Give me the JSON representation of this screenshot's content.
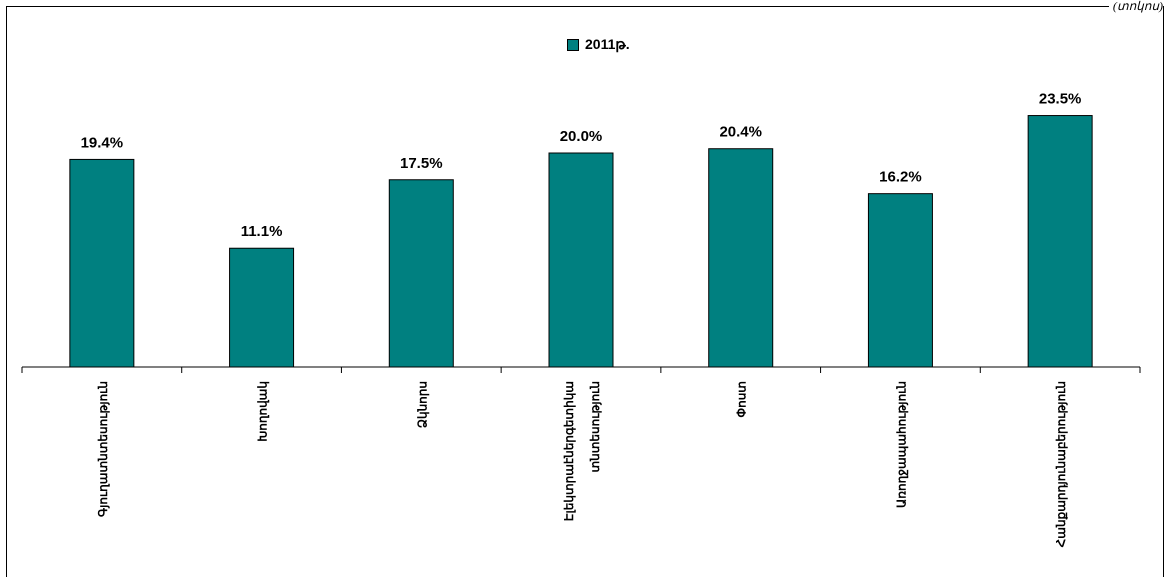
{
  "chart_data": {
    "type": "bar",
    "categories": [
      "Գյուղատնտեսություն",
      "Խողովակ",
      "Ձկնորս",
      "Էլեկտրաէներգետիկա տնտեսություն",
      "Փոստ",
      "Առողջապահություն",
      "Հանքարդյունաբերություն"
    ],
    "series": [
      {
        "name": "2011թ.",
        "values": [
          19.4,
          11.1,
          17.5,
          20.0,
          20.4,
          16.2,
          23.5
        ]
      }
    ],
    "data_labels": [
      "19.4%",
      "11.1%",
      "17.5%",
      "20.0%",
      "20.4%",
      "16.2%",
      "23.5%"
    ],
    "ylim": [
      0,
      24.5
    ],
    "legend_position": "top-center",
    "grid": false
  },
  "corner_note": "(տոկոս)",
  "colors": {
    "bar": "#008080",
    "axis": "#000000"
  }
}
